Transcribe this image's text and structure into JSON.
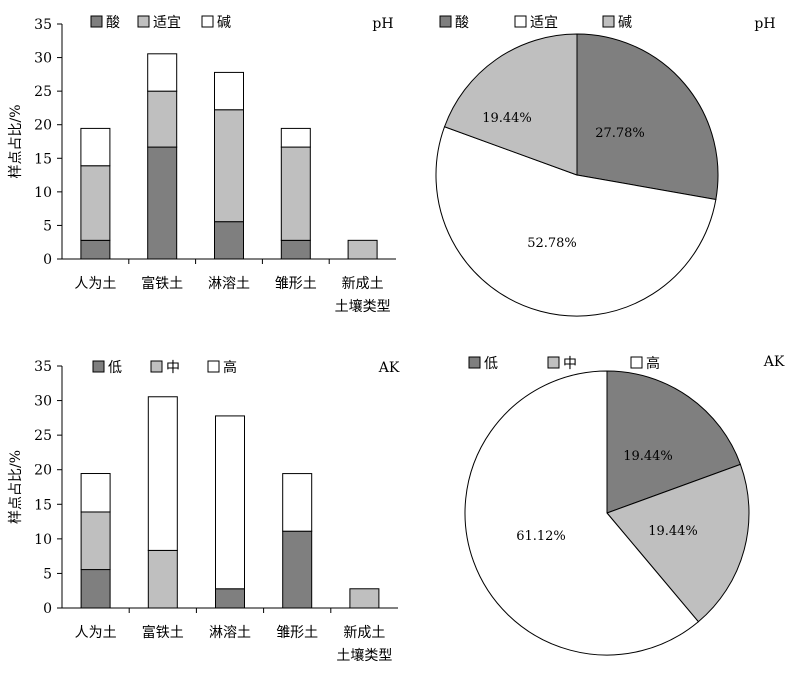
{
  "chart_data": [
    {
      "type": "bar",
      "stacked": true,
      "corner_label": "pH",
      "ylabel": "样点占比/%",
      "xlabel": "土壤类型",
      "ylim": [
        0,
        35
      ],
      "yticks": [
        0,
        5,
        10,
        15,
        20,
        25,
        30,
        35
      ],
      "categories": [
        "人为土",
        "富铁土",
        "淋溶土",
        "雏形土",
        "新成土"
      ],
      "legend_position": "top-left",
      "series": [
        {
          "name": "酸",
          "color": "#7f7f7f",
          "values": [
            2.78,
            16.67,
            5.56,
            2.78,
            0
          ]
        },
        {
          "name": "适宜",
          "color": "#bfbfbf",
          "values": [
            11.11,
            8.33,
            16.67,
            13.89,
            2.78
          ]
        },
        {
          "name": "碱",
          "color": "#ffffff",
          "values": [
            5.56,
            5.56,
            5.56,
            2.78,
            0
          ]
        }
      ]
    },
    {
      "type": "pie",
      "corner_label": "pH",
      "legend_position": "top-left",
      "slices": [
        {
          "name": "酸",
          "color": "#7f7f7f",
          "value": 27.78,
          "label": "27.78%"
        },
        {
          "name": "适宜",
          "color": "#ffffff",
          "value": 52.78,
          "label": "52.78%"
        },
        {
          "name": "碱",
          "color": "#bfbfbf",
          "value": 19.44,
          "label": "19.44%"
        }
      ]
    },
    {
      "type": "bar",
      "stacked": true,
      "corner_label": "AK",
      "ylabel": "样点占比/%",
      "xlabel": "土壤类型",
      "ylim": [
        0,
        35
      ],
      "yticks": [
        0,
        5,
        10,
        15,
        20,
        25,
        30,
        35
      ],
      "categories": [
        "人为土",
        "富铁土",
        "淋溶土",
        "雏形土",
        "新成土"
      ],
      "legend_position": "top-left",
      "series": [
        {
          "name": "低",
          "color": "#7f7f7f",
          "values": [
            5.56,
            0,
            2.78,
            11.11,
            0
          ]
        },
        {
          "name": "中",
          "color": "#bfbfbf",
          "values": [
            8.33,
            8.33,
            0,
            0,
            2.78
          ]
        },
        {
          "name": "高",
          "color": "#ffffff",
          "values": [
            5.56,
            22.22,
            25.0,
            8.33,
            0
          ]
        }
      ]
    },
    {
      "type": "pie",
      "corner_label": "AK",
      "legend_position": "top-left",
      "slices": [
        {
          "name": "低",
          "color": "#7f7f7f",
          "value": 19.44,
          "label": "19.44%"
        },
        {
          "name": "中",
          "color": "#bfbfbf",
          "value": 19.44,
          "label": "19.44%"
        },
        {
          "name": "高",
          "color": "#ffffff",
          "value": 61.12,
          "label": "61.12%"
        }
      ]
    }
  ]
}
